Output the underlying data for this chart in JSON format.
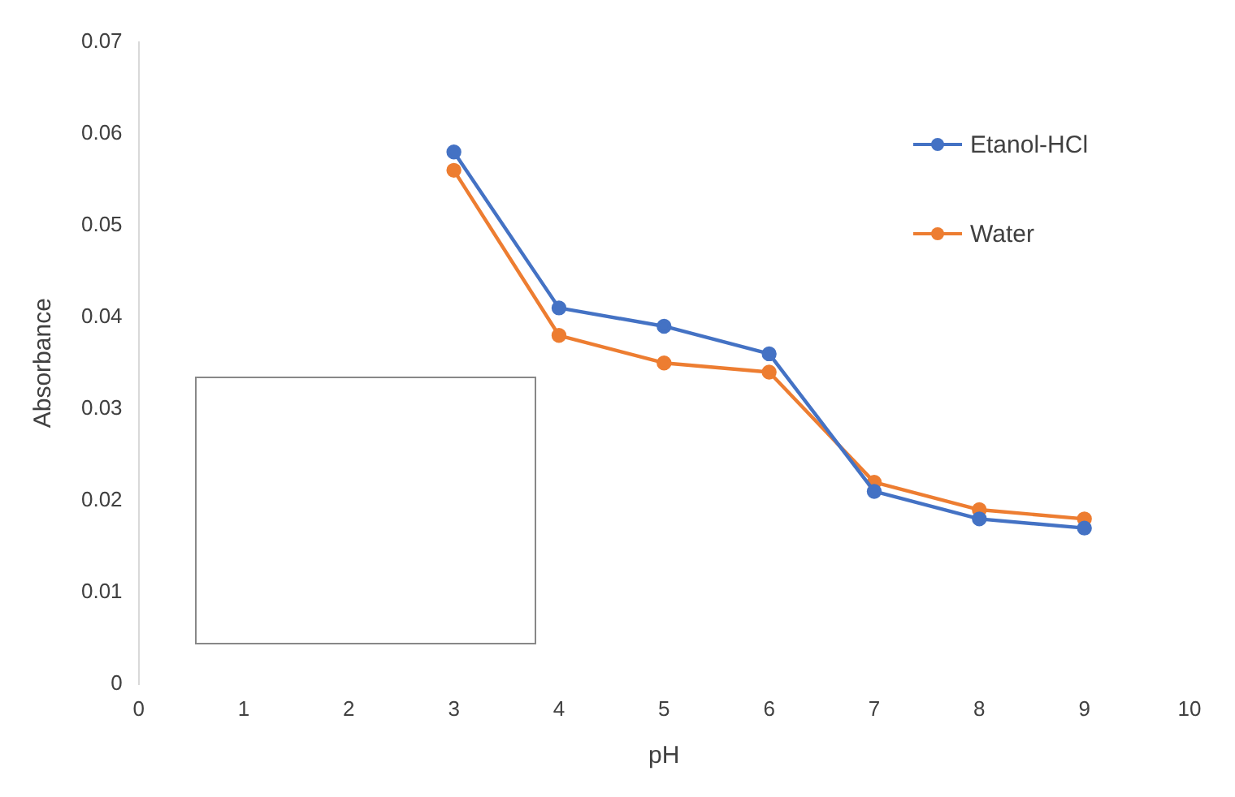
{
  "chart_data": {
    "type": "line",
    "xlabel": "pH",
    "ylabel": "Absorbance",
    "x": [
      3,
      4,
      5,
      6,
      7,
      8,
      9
    ],
    "series": [
      {
        "name": "Etanol-HCl",
        "color": "#4472c4",
        "values": [
          0.058,
          0.041,
          0.039,
          0.036,
          0.021,
          0.018,
          0.017
        ]
      },
      {
        "name": "Water",
        "color": "#ed7d31",
        "values": [
          0.056,
          0.038,
          0.035,
          0.034,
          0.022,
          0.019,
          0.018
        ]
      }
    ],
    "xlim": [
      0,
      10
    ],
    "xticks": [
      0,
      1,
      2,
      3,
      4,
      5,
      6,
      7,
      8,
      9,
      10
    ],
    "ylim": [
      0,
      0.07
    ],
    "yticks": [
      0,
      0.01,
      0.02,
      0.03,
      0.04,
      0.05,
      0.06,
      0.07
    ],
    "grid": false,
    "legend": "top right",
    "marker": "circle",
    "line_style": "solid"
  }
}
